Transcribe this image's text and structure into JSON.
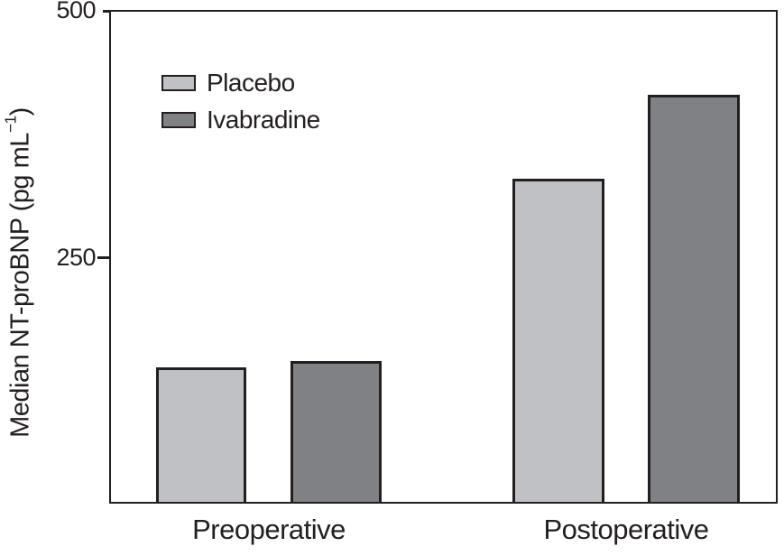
{
  "chart_data": {
    "type": "bar",
    "title": "",
    "categories": [
      "Preoperative",
      "Postoperative"
    ],
    "series": [
      {
        "name": "Placebo",
        "color": "#c0c1c4",
        "values": [
          137,
          330
        ]
      },
      {
        "name": "Ivabradine",
        "color": "#7f8184",
        "values": [
          144,
          415
        ]
      }
    ],
    "xlabel": "",
    "ylabel": "Median NT-proBNP (pg mL⁻¹)",
    "ylabel_parts": {
      "text": "Median NT-proBNP (pg mL",
      "sup": "−1",
      "close": ")"
    },
    "ylim": [
      0,
      500
    ],
    "y_ticks": [
      500,
      250
    ],
    "grid": false,
    "legend_position": "upper-left-inside",
    "colors": {
      "axis": "#231f20",
      "background": "#ffffff"
    }
  }
}
